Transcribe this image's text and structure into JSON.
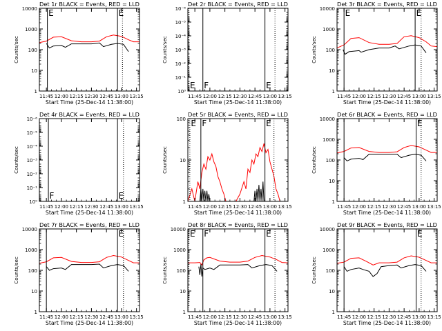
{
  "chart_data": [
    {
      "type": "line",
      "title": "Det 1r BLACK = Events, RED = LLD",
      "xlabel": "Start Time (25-Dec-14 11:38:00)",
      "ylabel": "Counts/sec",
      "y_scale": "log",
      "ylim": [
        1,
        10000
      ],
      "ytick_values": [
        1,
        10,
        100,
        1000,
        10000
      ],
      "ytick_labels": [
        "1",
        "10",
        "100",
        "1000",
        "10000"
      ],
      "xlim": [
        "11:38",
        "13:18"
      ],
      "xtick_labels": [
        "11:45",
        "12:00",
        "12:15",
        "12:30",
        "12:45",
        "13:00",
        "13:15"
      ],
      "vlines": [
        {
          "time": "11:46",
          "style": "solid",
          "label": "E"
        },
        {
          "time": "12:56",
          "style": "solid",
          "label": "E"
        },
        {
          "time": "13:01",
          "style": "dotted",
          "label": ""
        }
      ],
      "series": [
        {
          "color": "#ff0000",
          "x": [
            "11:38",
            "11:45",
            "11:52",
            "12:00",
            "12:10",
            "12:20",
            "12:30",
            "12:38",
            "12:45",
            "12:52",
            "13:00",
            "13:07",
            "13:12",
            "13:18"
          ],
          "values": [
            220,
            260,
            400,
            420,
            270,
            240,
            240,
            260,
            420,
            510,
            440,
            300,
            240,
            240
          ]
        },
        {
          "color": "#000000",
          "x": [
            "11:45",
            "11:48",
            "11:52",
            "12:00",
            "12:04",
            "12:10",
            "12:20",
            "12:30",
            "12:38",
            "12:42",
            "12:50",
            "12:56",
            "13:02",
            "13:07"
          ],
          "values": [
            200,
            120,
            150,
            160,
            130,
            190,
            190,
            190,
            210,
            140,
            180,
            200,
            180,
            80
          ]
        }
      ]
    },
    {
      "type": "line",
      "title": "Det 2r BLACK = Events, RED = LLD",
      "xlabel": "Start Time (25-Dec-14 11:38:00)",
      "ylabel": "Counts/sec",
      "y_scale": "log",
      "ylim": [
        1,
        1e-06
      ],
      "ytick_values": [
        1e-06,
        1e-05,
        0.0001,
        0.001,
        0.01,
        0.1,
        1
      ],
      "ytick_labels": [
        "10⁻⁶",
        "10⁻⁵",
        "10⁻⁴",
        "10⁻³",
        "10⁻²",
        "10⁻¹",
        "10⁰"
      ],
      "xlim": [
        "11:38",
        "13:18"
      ],
      "xtick_labels": [
        "11:45",
        "12:00",
        "12:15",
        "12:30",
        "12:45",
        "13:00",
        "13:15"
      ],
      "vlines": [
        {
          "time": "11:39",
          "style": "dotted",
          "label": "E"
        },
        {
          "time": "11:53",
          "style": "solid",
          "label": "F"
        },
        {
          "time": "12:55",
          "style": "solid",
          "label": "E"
        },
        {
          "time": "13:05",
          "style": "dotted",
          "label": ""
        }
      ],
      "series": []
    },
    {
      "type": "line",
      "title": "Det 3r BLACK = Events, RED = LLD",
      "xlabel": "Start Time (25-Dec-14 11:38:00)",
      "ylabel": "Counts/sec",
      "y_scale": "log",
      "ylim": [
        1,
        10000
      ],
      "ytick_values": [
        1,
        10,
        100,
        1000,
        10000
      ],
      "ytick_labels": [
        "1",
        "10",
        "100",
        "1000",
        "10000"
      ],
      "xlim": [
        "11:38",
        "13:18"
      ],
      "xtick_labels": [
        "11:45",
        "12:00",
        "12:15",
        "12:30",
        "12:45",
        "13:00",
        "13:15"
      ],
      "vlines": [
        {
          "time": "11:45",
          "style": "solid",
          "label": "E"
        },
        {
          "time": "12:56",
          "style": "solid",
          "label": "E"
        },
        {
          "time": "13:02",
          "style": "dotted",
          "label": ""
        }
      ],
      "series": [
        {
          "color": "#ff0000",
          "x": [
            "11:38",
            "11:45",
            "11:52",
            "12:00",
            "12:10",
            "12:20",
            "12:30",
            "12:38",
            "12:45",
            "12:52",
            "13:00",
            "13:07",
            "13:12",
            "13:18"
          ],
          "values": [
            120,
            170,
            350,
            380,
            220,
            180,
            180,
            200,
            420,
            470,
            380,
            240,
            150,
            140
          ]
        },
        {
          "color": "#000000",
          "x": [
            "11:44",
            "11:46",
            "11:50",
            "12:00",
            "12:02",
            "12:10",
            "12:20",
            "12:30",
            "12:36",
            "12:40",
            "12:50",
            "12:56",
            "13:02",
            "13:07"
          ],
          "values": [
            100,
            60,
            80,
            90,
            75,
            100,
            120,
            120,
            150,
            110,
            150,
            170,
            150,
            70
          ]
        }
      ]
    },
    {
      "type": "line",
      "title": "Det 4r BLACK = Events, RED = LLD",
      "xlabel": "Start Time (25-Dec-14 11:38:00)",
      "ylabel": "Counts/sec",
      "y_scale": "log",
      "ylim": [
        1,
        1e-06
      ],
      "ytick_values": [
        1e-06,
        1e-05,
        0.0001,
        0.001,
        0.01,
        0.1,
        1
      ],
      "ytick_labels": [
        "10⁻⁶",
        "10⁻⁵",
        "10⁻⁴",
        "10⁻³",
        "10⁻²",
        "10⁻¹",
        "10⁰"
      ],
      "xlim": [
        "11:38",
        "13:18"
      ],
      "xtick_labels": [
        "11:45",
        "12:00",
        "12:15",
        "12:30",
        "12:45",
        "13:00",
        "13:15"
      ],
      "vlines": [
        {
          "time": "11:47",
          "style": "solid",
          "label": "F"
        },
        {
          "time": "12:56",
          "style": "solid",
          "label": "E"
        },
        {
          "time": "13:02",
          "style": "dotted",
          "label": ""
        }
      ],
      "series": []
    },
    {
      "type": "line",
      "title": "Det 5r BLACK = Events, RED = LLD",
      "xlabel": "Start Time (25-Dec-14 11:38:00)",
      "ylabel": "Counts/sec",
      "y_scale": "log",
      "ylim": [
        1,
        100
      ],
      "ytick_values": [
        1,
        10,
        100
      ],
      "ytick_labels": [
        "1",
        "10",
        "100"
      ],
      "xlim": [
        "11:38",
        "13:18"
      ],
      "xtick_labels": [
        "11:45",
        "12:00",
        "12:15",
        "12:30",
        "12:45",
        "13:00",
        "13:15"
      ],
      "vlines": [
        {
          "time": "11:40",
          "style": "dotted",
          "label": "E"
        },
        {
          "time": "11:51",
          "style": "solid",
          "label": "F"
        },
        {
          "time": "12:55",
          "style": "solid",
          "label": "E"
        },
        {
          "time": "13:04",
          "style": "dotted",
          "label": ""
        }
      ],
      "series": [
        {
          "color": "#ff0000",
          "x": [
            "11:38",
            "11:42",
            "11:45",
            "11:48",
            "11:50",
            "11:52",
            "11:54",
            "11:56",
            "11:58",
            "12:00",
            "12:02",
            "12:04",
            "12:06",
            "12:08",
            "12:10",
            "12:12",
            "12:14",
            "12:16",
            "12:20",
            "12:26",
            "12:30",
            "12:34",
            "12:36",
            "12:38",
            "12:40",
            "12:42",
            "12:44",
            "12:46",
            "12:48",
            "12:50",
            "12:52",
            "12:54",
            "12:56",
            "12:58",
            "13:00",
            "13:02",
            "13:04",
            "13:06",
            "13:08",
            "13:10"
          ],
          "values": [
            1,
            2,
            1,
            3,
            2,
            5,
            8,
            6,
            12,
            10,
            14,
            9,
            7,
            4,
            3,
            2,
            1.5,
            1,
            1,
            1,
            1.5,
            3,
            2,
            6,
            5,
            10,
            8,
            14,
            12,
            20,
            16,
            25,
            15,
            18,
            9,
            6,
            4,
            2,
            1.5,
            1
          ]
        },
        {
          "color": "#000000",
          "x": [
            "11:50",
            "11:51",
            "11:52",
            "11:53",
            "11:54",
            "11:55",
            "11:56",
            "11:57",
            "11:58",
            "11:59",
            "12:00",
            "12:44",
            "12:45",
            "12:46",
            "12:47",
            "12:48",
            "12:49",
            "12:50",
            "12:51",
            "12:52",
            "12:53",
            "12:54",
            "12:55"
          ],
          "values": [
            1,
            2,
            1,
            2,
            1,
            1.8,
            1,
            1.8,
            1,
            1.5,
            1,
            1,
            1.8,
            1,
            2,
            1,
            2.5,
            1,
            2,
            1,
            3,
            1,
            1
          ]
        }
      ]
    },
    {
      "type": "line",
      "title": "Det 6r BLACK = Events, RED = LLD",
      "xlabel": "Start Time (25-Dec-14 11:38:00)",
      "ylabel": "Counts/sec",
      "y_scale": "log",
      "ylim": [
        1,
        10000
      ],
      "ytick_values": [
        1,
        10,
        100,
        1000,
        10000
      ],
      "ytick_labels": [
        "1",
        "10",
        "100",
        "1000",
        "10000"
      ],
      "xlim": [
        "11:38",
        "13:18"
      ],
      "xtick_labels": [
        "11:45",
        "12:00",
        "12:15",
        "12:30",
        "12:45",
        "13:00",
        "13:15"
      ],
      "vlines": [
        {
          "time": "11:45",
          "style": "solid",
          "label": ""
        },
        {
          "time": "12:57",
          "style": "solid",
          "label": "E"
        },
        {
          "time": "13:02",
          "style": "dotted",
          "label": ""
        }
      ],
      "series": [
        {
          "color": "#ff0000",
          "x": [
            "11:38",
            "11:45",
            "11:52",
            "12:00",
            "12:10",
            "12:20",
            "12:30",
            "12:38",
            "12:45",
            "12:52",
            "13:00",
            "13:07",
            "13:12",
            "13:18"
          ],
          "values": [
            220,
            260,
            380,
            400,
            260,
            230,
            230,
            250,
            400,
            500,
            430,
            300,
            230,
            230
          ]
        },
        {
          "color": "#000000",
          "x": [
            "11:45",
            "11:48",
            "11:52",
            "12:00",
            "12:04",
            "12:10",
            "12:20",
            "12:30",
            "12:38",
            "12:42",
            "12:50",
            "12:56",
            "13:02",
            "13:07"
          ],
          "values": [
            130,
            90,
            110,
            120,
            105,
            190,
            190,
            190,
            190,
            130,
            170,
            190,
            170,
            90
          ]
        }
      ]
    },
    {
      "type": "line",
      "title": "Det 7r BLACK = Events, RED = LLD",
      "xlabel": "Start Time (25-Dec-14 11:38:00)",
      "ylabel": "Counts/sec",
      "y_scale": "log",
      "ylim": [
        1,
        10000
      ],
      "ytick_values": [
        1,
        10,
        100,
        1000,
        10000
      ],
      "ytick_labels": [
        "1",
        "10",
        "100",
        "1000",
        "10000"
      ],
      "xlim": [
        "11:38",
        "13:18"
      ],
      "xtick_labels": [
        "11:45",
        "12:00",
        "12:15",
        "12:30",
        "12:45",
        "13:00",
        "13:15"
      ],
      "vlines": [
        {
          "time": "11:45",
          "style": "solid",
          "label": ""
        },
        {
          "time": "12:56",
          "style": "solid",
          "label": "E"
        },
        {
          "time": "13:02",
          "style": "dotted",
          "label": ""
        }
      ],
      "series": [
        {
          "color": "#ff0000",
          "x": [
            "11:38",
            "11:45",
            "11:52",
            "12:00",
            "12:10",
            "12:20",
            "12:30",
            "12:38",
            "12:45",
            "12:52",
            "13:00",
            "13:07",
            "13:12",
            "13:18"
          ],
          "values": [
            220,
            260,
            400,
            420,
            270,
            240,
            240,
            260,
            420,
            520,
            440,
            300,
            230,
            230
          ]
        },
        {
          "color": "#000000",
          "x": [
            "11:45",
            "11:48",
            "11:52",
            "12:00",
            "12:04",
            "12:10",
            "12:20",
            "12:30",
            "12:38",
            "12:42",
            "12:50",
            "12:56",
            "13:02",
            "13:07"
          ],
          "values": [
            150,
            100,
            120,
            130,
            110,
            190,
            190,
            190,
            200,
            130,
            170,
            190,
            170,
            90
          ]
        }
      ]
    },
    {
      "type": "line",
      "title": "Det 8r BLACK = Events, RED = LLD",
      "xlabel": "Start Time (25-Dec-14 11:38:00)",
      "ylabel": "Counts/sec",
      "y_scale": "log",
      "ylim": [
        1,
        10000
      ],
      "ytick_values": [
        1,
        10,
        100,
        1000,
        10000
      ],
      "ytick_labels": [
        "1",
        "10",
        "100",
        "1000",
        "10000"
      ],
      "xlim": [
        "11:38",
        "13:18"
      ],
      "xtick_labels": [
        "11:45",
        "12:00",
        "12:15",
        "12:30",
        "12:45",
        "13:00",
        "13:15"
      ],
      "vlines": [
        {
          "time": "11:39",
          "style": "dotted",
          "label": "E"
        },
        {
          "time": "11:53",
          "style": "solid",
          "label": "F"
        },
        {
          "time": "12:55",
          "style": "solid",
          "label": "E"
        },
        {
          "time": "13:05",
          "style": "dotted",
          "label": ""
        }
      ],
      "series": [
        {
          "color": "#ff0000",
          "x": [
            "11:38",
            "11:45",
            "11:50",
            "11:52",
            "11:54",
            "11:57",
            "12:00",
            "12:10",
            "12:20",
            "12:30",
            "12:38",
            "12:45",
            "12:52",
            "13:00",
            "13:07",
            "13:12",
            "13:18"
          ],
          "values": [
            230,
            230,
            240,
            180,
            320,
            400,
            420,
            280,
            250,
            250,
            280,
            420,
            520,
            440,
            320,
            240,
            230
          ]
        },
        {
          "color": "#000000",
          "x": [
            "11:49",
            "11:50",
            "11:51",
            "11:52",
            "11:53",
            "11:55",
            "12:00",
            "12:04",
            "12:10",
            "12:20",
            "12:30",
            "12:38",
            "12:42",
            "12:50",
            "12:56",
            "13:02",
            "13:07"
          ],
          "values": [
            150,
            60,
            200,
            50,
            130,
            110,
            130,
            110,
            180,
            180,
            180,
            190,
            130,
            170,
            190,
            170,
            90
          ]
        }
      ]
    },
    {
      "type": "line",
      "title": "Det 9r BLACK = Events, RED = LLD",
      "xlabel": "Start Time (25-Dec-14 11:38:00)",
      "ylabel": "Counts/sec",
      "y_scale": "log",
      "ylim": [
        1,
        10000
      ],
      "ytick_values": [
        1,
        10,
        100,
        1000,
        10000
      ],
      "ytick_labels": [
        "1",
        "10",
        "100",
        "1000",
        "10000"
      ],
      "xlim": [
        "11:38",
        "13:18"
      ],
      "xtick_labels": [
        "11:45",
        "12:00",
        "12:15",
        "12:30",
        "12:45",
        "13:00",
        "13:15"
      ],
      "vlines": [
        {
          "time": "11:45",
          "style": "solid",
          "label": ""
        },
        {
          "time": "12:57",
          "style": "solid",
          "label": "E"
        },
        {
          "time": "13:02",
          "style": "dotted",
          "label": ""
        }
      ],
      "series": [
        {
          "color": "#ff0000",
          "x": [
            "11:38",
            "11:45",
            "11:52",
            "12:00",
            "12:08",
            "12:14",
            "12:20",
            "12:30",
            "12:38",
            "12:45",
            "12:52",
            "13:00",
            "13:07",
            "13:12",
            "13:18"
          ],
          "values": [
            220,
            250,
            380,
            400,
            260,
            180,
            230,
            230,
            250,
            400,
            500,
            430,
            300,
            230,
            230
          ]
        },
        {
          "color": "#000000",
          "x": [
            "11:45",
            "11:48",
            "11:52",
            "12:00",
            "12:04",
            "12:10",
            "12:14",
            "12:18",
            "12:22",
            "12:30",
            "12:38",
            "12:42",
            "12:50",
            "12:56",
            "13:02",
            "13:07"
          ],
          "values": [
            150,
            90,
            110,
            130,
            110,
            90,
            50,
            70,
            150,
            170,
            180,
            130,
            170,
            190,
            170,
            90
          ]
        }
      ]
    }
  ]
}
